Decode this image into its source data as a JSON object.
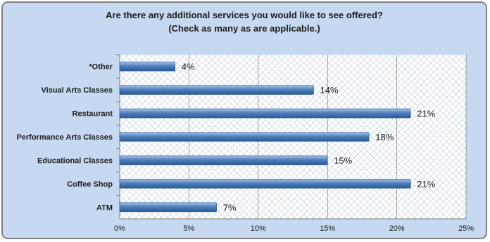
{
  "chart_data": {
    "type": "bar",
    "orientation": "horizontal",
    "title": [
      "Are there any additional services you would like to see offered?",
      "(Check as many as are applicable.)"
    ],
    "categories": [
      "*Other",
      "Visual Arts Classes",
      "Restaurant",
      "Performance Arts Classes",
      "Educational Classes",
      "Coffee Shop",
      "ATM"
    ],
    "values": [
      4,
      14,
      21,
      18,
      15,
      21,
      7
    ],
    "value_labels": [
      "4%",
      "14%",
      "21%",
      "18%",
      "15%",
      "21%",
      "7%"
    ],
    "xlim": [
      0,
      25
    ],
    "x_ticks": [
      0,
      5,
      10,
      15,
      20,
      25
    ],
    "x_tick_labels": [
      "0%",
      "5%",
      "10%",
      "15%",
      "20%",
      "25%"
    ],
    "grid": true,
    "legend": "none",
    "colors": {
      "bar": "#4f81bd",
      "background": "#c6d9f1",
      "plot_area": "#ffffff",
      "border": "#7f7f7f"
    }
  }
}
